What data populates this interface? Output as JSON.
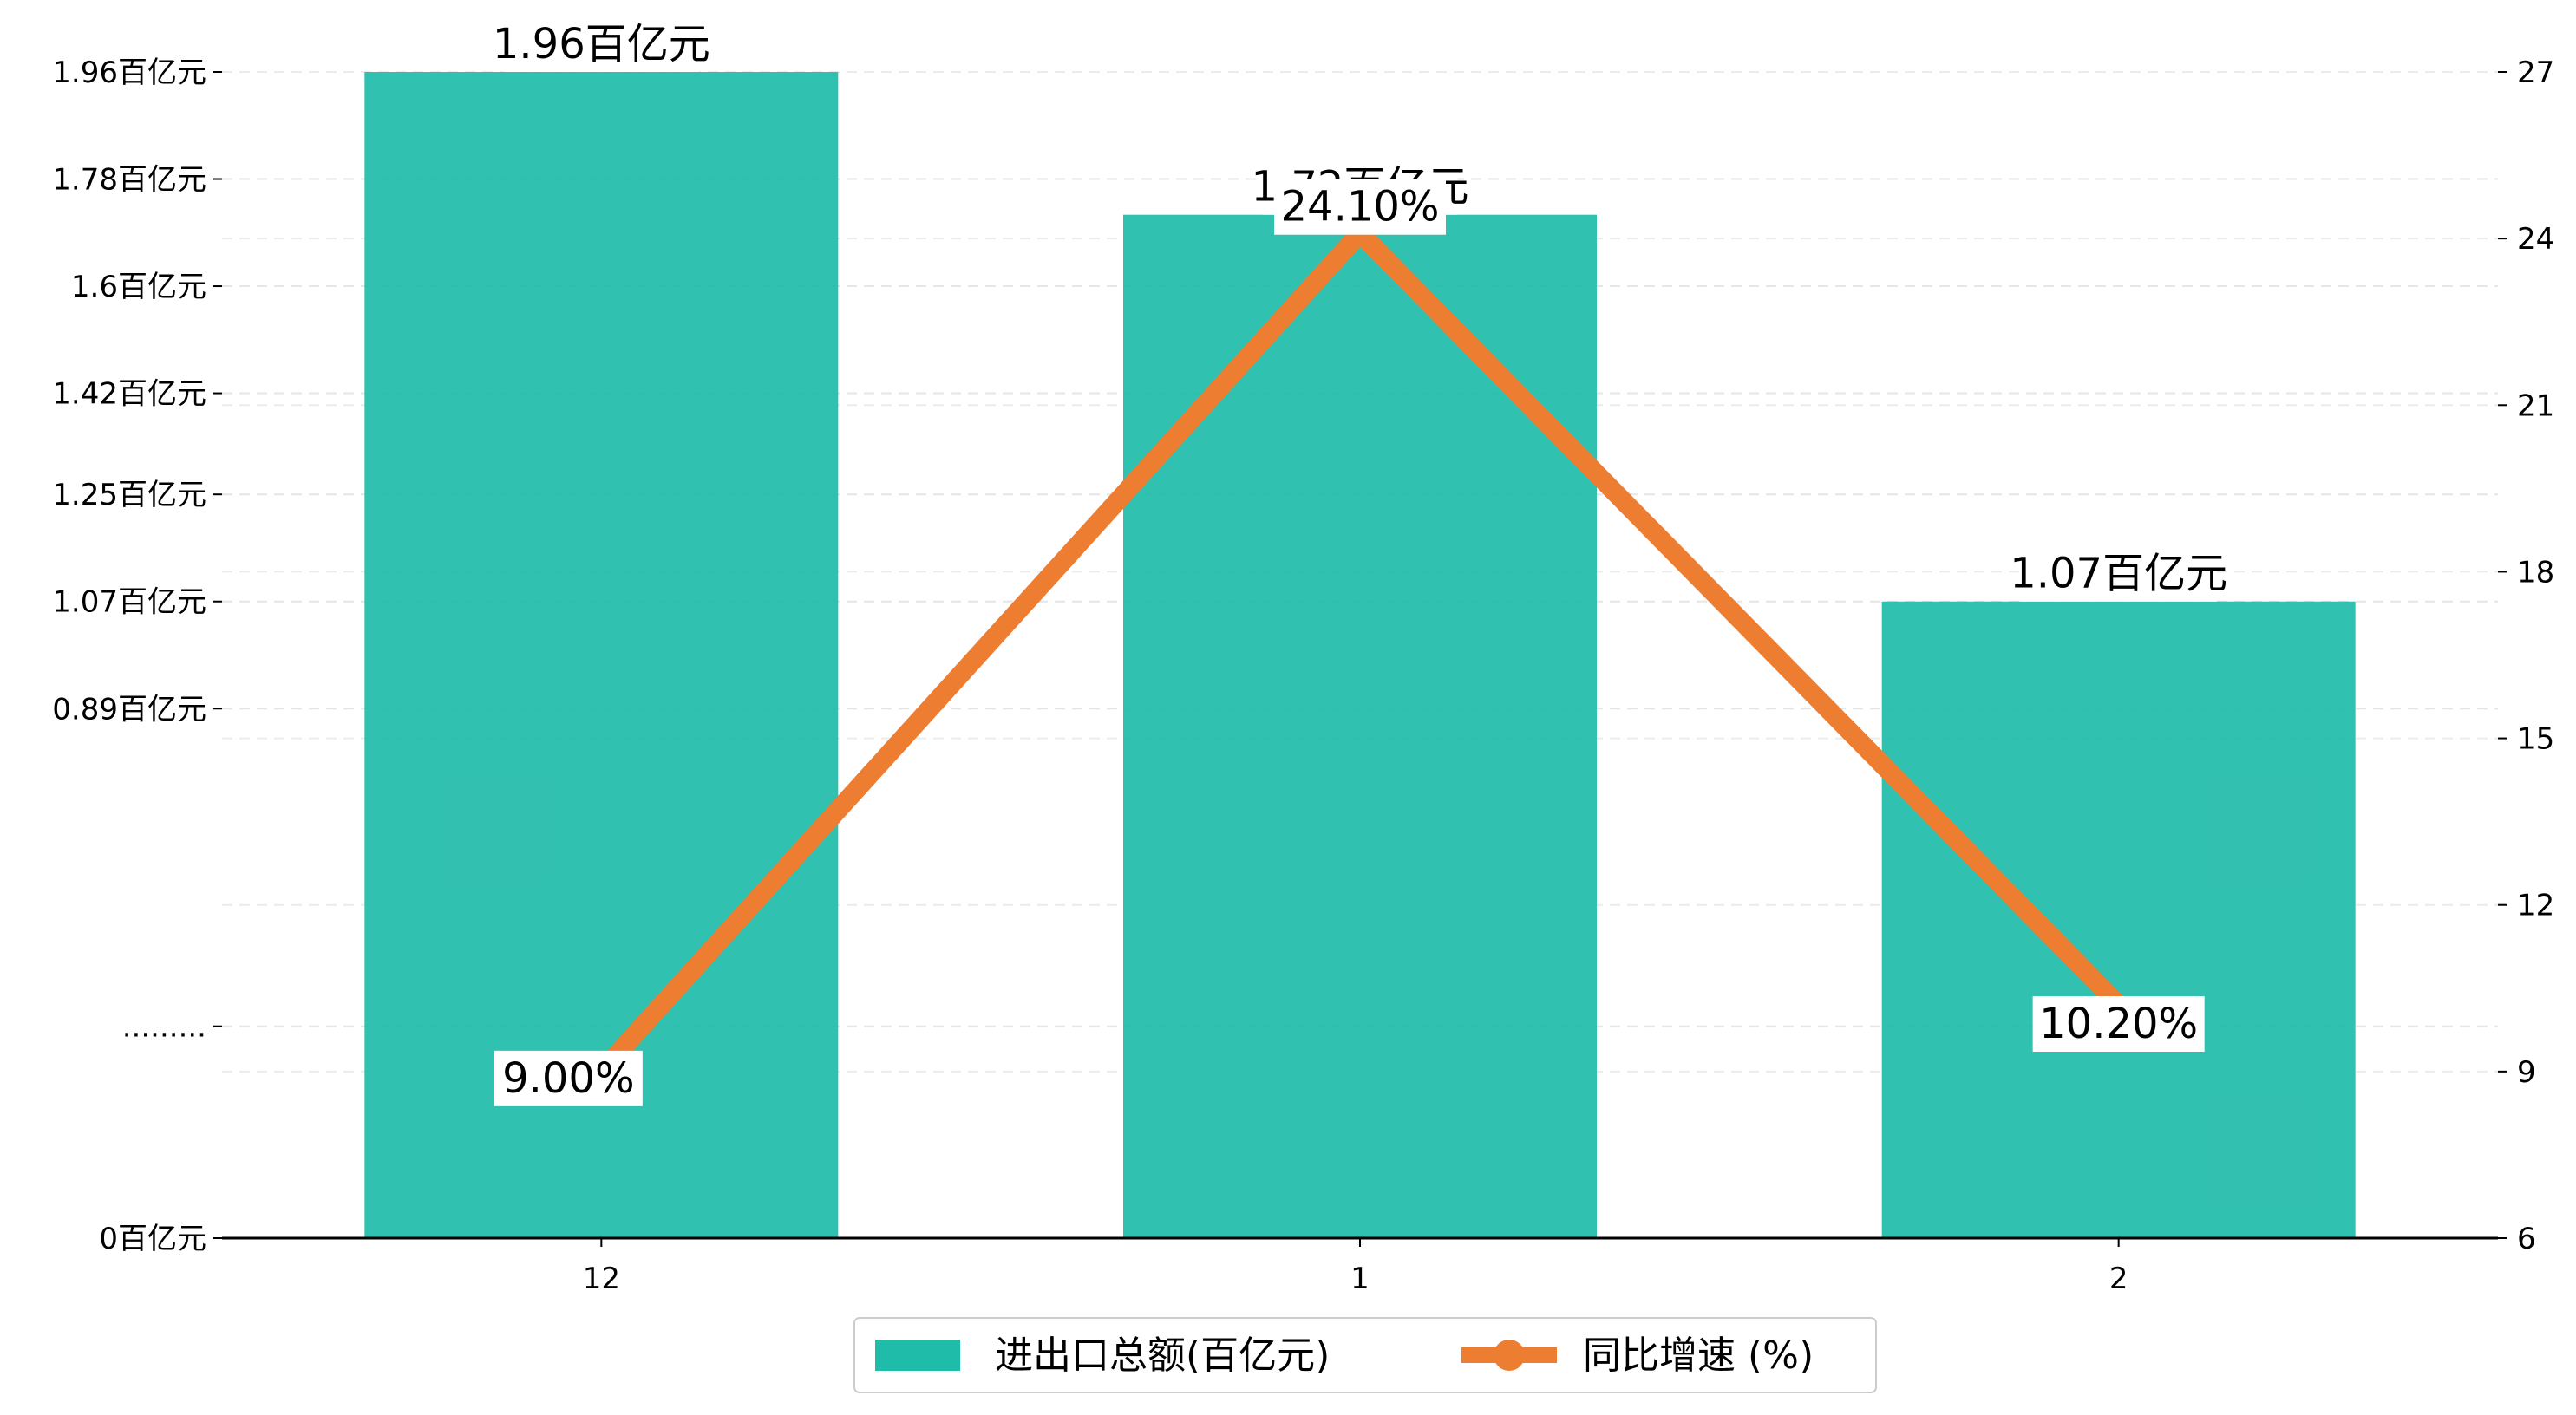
{
  "chart_data": {
    "type": "bar+line",
    "categories": [
      "12",
      "1",
      "2"
    ],
    "series": [
      {
        "name": "进出口总额(百亿元)",
        "type": "bar",
        "axis": "left",
        "values": [
          1.96,
          1.72,
          1.07
        ],
        "labels": [
          "1.96百亿元",
          "1.72百亿元",
          "1.07百亿元"
        ],
        "color": "#20bcaa"
      },
      {
        "name": "同比增速 (%)",
        "type": "line",
        "axis": "right",
        "values": [
          9.0,
          24.1,
          10.2
        ],
        "labels": [
          "9.00%",
          "24.10%",
          "10.20%"
        ],
        "color": "#ed7d31"
      }
    ],
    "y_left": {
      "ticks": [
        0,
        0.356,
        0.89,
        1.07,
        1.25,
        1.42,
        1.6,
        1.78,
        1.96
      ],
      "tick_labels": [
        "0百亿元",
        ".........",
        "0.89百亿元",
        "1.07百亿元",
        "1.25百亿元",
        "1.42百亿元",
        "1.6百亿元",
        "1.78百亿元",
        "1.96百亿元"
      ],
      "ylim": [
        0,
        1.96
      ]
    },
    "y_right": {
      "ticks": [
        6,
        9,
        12,
        15,
        18,
        21,
        24,
        27
      ],
      "tick_labels": [
        "6",
        "9",
        "12",
        "15",
        "18",
        "21",
        "24",
        "27"
      ],
      "ylim": [
        6,
        27
      ]
    },
    "grid": true,
    "legend_position": "bottom-center",
    "title": "",
    "xlabel": "",
    "ylabel": ""
  }
}
